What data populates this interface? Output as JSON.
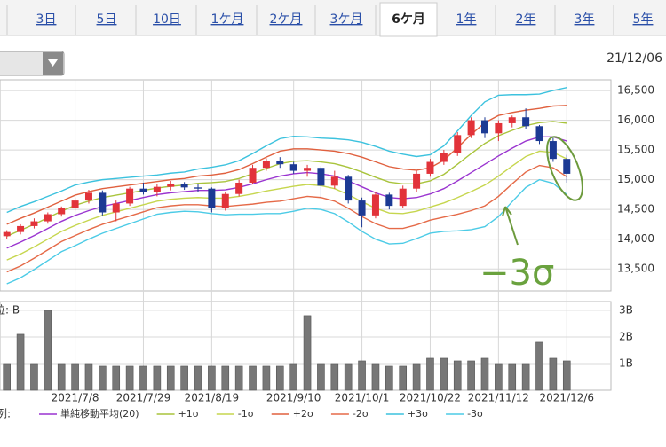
{
  "tabs": [
    {
      "label": "3日"
    },
    {
      "label": "5日"
    },
    {
      "label": "10日"
    },
    {
      "label": "1ケ月"
    },
    {
      "label": "2ケ月"
    },
    {
      "label": "3ケ月"
    },
    {
      "label": "6ケ月",
      "active": true
    },
    {
      "label": "1年"
    },
    {
      "label": "2年"
    },
    {
      "label": "3年"
    },
    {
      "label": "5年"
    }
  ],
  "date": "21/12/06",
  "annotation": "−3σ",
  "legend_prefix": "例:",
  "chart_data": [
    {
      "type": "candlestick",
      "categories": [
        null,
        null,
        null,
        null,
        null,
        "2021/7/8",
        null,
        null,
        null,
        null,
        "2021/7/29",
        null,
        null,
        null,
        null,
        "2021/8/19",
        null,
        null,
        null,
        null,
        null,
        "2021/9/10",
        null,
        null,
        null,
        null,
        "2021/10/1",
        null,
        null,
        null,
        null,
        "2021/10/22",
        null,
        null,
        null,
        null,
        "2021/11/12",
        null,
        null,
        null,
        null,
        "2021/12/6"
      ],
      "open": [
        14050,
        14120,
        14220,
        14300,
        14420,
        14520,
        14650,
        14780,
        14450,
        14600,
        14850,
        14800,
        14880,
        14920,
        14870,
        14850,
        14520,
        14760,
        14950,
        15200,
        15320,
        15260,
        15150,
        15200,
        14900,
        15050,
        14650,
        14400,
        14750,
        14560,
        14850,
        15100,
        15300,
        15450,
        15750,
        16000,
        15780,
        15950,
        16050,
        15900,
        15650,
        15350
      ],
      "high": [
        14150,
        14250,
        14350,
        14450,
        14550,
        14700,
        14830,
        14820,
        14650,
        14880,
        14950,
        14920,
        14980,
        14960,
        14920,
        14870,
        14800,
        15000,
        15250,
        15360,
        15380,
        15300,
        15250,
        15230,
        15150,
        15080,
        14700,
        14800,
        14780,
        14900,
        15150,
        15350,
        15500,
        15800,
        16050,
        16050,
        16000,
        16080,
        16200,
        15920,
        15700,
        15420
      ],
      "low": [
        14000,
        14080,
        14180,
        14260,
        14380,
        14480,
        14600,
        14400,
        14300,
        14560,
        14750,
        14720,
        14820,
        14830,
        14800,
        14450,
        14480,
        14720,
        14920,
        15150,
        15200,
        15100,
        15050,
        14700,
        14850,
        14600,
        14200,
        14350,
        14500,
        14520,
        14800,
        15050,
        15250,
        15400,
        15700,
        15700,
        15650,
        15880,
        15850,
        15600,
        15300,
        14950
      ],
      "close": [
        14120,
        14220,
        14300,
        14420,
        14520,
        14650,
        14780,
        14450,
        14600,
        14850,
        14800,
        14880,
        14920,
        14870,
        14850,
        14520,
        14760,
        14950,
        15200,
        15320,
        15260,
        15150,
        15200,
        14900,
        15050,
        14650,
        14400,
        14750,
        14560,
        14850,
        15100,
        15300,
        15450,
        15750,
        16000,
        15780,
        15950,
        16050,
        15900,
        15650,
        15350,
        15100
      ],
      "up_color": "#e2333a",
      "down_color": "#1c3a94",
      "overlays": [
        {
          "name": "単純移動平均(20)",
          "color": "#9a34d0",
          "values": [
            13850,
            13950,
            14060,
            14180,
            14300,
            14400,
            14480,
            14550,
            14600,
            14650,
            14700,
            14750,
            14780,
            14800,
            14820,
            14820,
            14830,
            14870,
            14930,
            15000,
            15060,
            15100,
            15120,
            15100,
            15060,
            14980,
            14880,
            14780,
            14700,
            14680,
            14700,
            14760,
            14850,
            14980,
            15120,
            15260,
            15400,
            15530,
            15650,
            15720,
            15720,
            15650
          ]
        },
        {
          "name": "+1σ",
          "color": "#a9c43c",
          "values": [
            14050,
            14150,
            14250,
            14360,
            14470,
            14570,
            14640,
            14700,
            14740,
            14780,
            14820,
            14860,
            14890,
            14910,
            14940,
            14950,
            14970,
            15020,
            15100,
            15190,
            15270,
            15310,
            15320,
            15300,
            15270,
            15210,
            15130,
            15040,
            14960,
            14930,
            14930,
            14980,
            15090,
            15260,
            15440,
            15610,
            15740,
            15830,
            15910,
            15960,
            15980,
            15950
          ]
        },
        {
          "name": "-1σ",
          "color": "#c6d64e",
          "values": [
            13650,
            13750,
            13870,
            14000,
            14130,
            14230,
            14320,
            14400,
            14460,
            14520,
            14580,
            14640,
            14670,
            14690,
            14700,
            14690,
            14690,
            14720,
            14760,
            14810,
            14850,
            14890,
            14920,
            14900,
            14850,
            14750,
            14630,
            14520,
            14440,
            14430,
            14470,
            14540,
            14610,
            14700,
            14800,
            14910,
            15060,
            15230,
            15390,
            15480,
            15460,
            15350
          ]
        },
        {
          "name": "+2σ",
          "color": "#e0603e",
          "values": [
            14250,
            14350,
            14440,
            14540,
            14640,
            14740,
            14800,
            14850,
            14880,
            14910,
            14940,
            14970,
            15000,
            15020,
            15060,
            15080,
            15110,
            15170,
            15270,
            15380,
            15480,
            15520,
            15520,
            15500,
            15480,
            15440,
            15380,
            15300,
            15220,
            15180,
            15160,
            15200,
            15330,
            15540,
            15760,
            15960,
            16080,
            16130,
            16170,
            16200,
            16240,
            16250
          ]
        },
        {
          "name": "-2σ",
          "color": "#e56a48",
          "values": [
            13450,
            13550,
            13680,
            13820,
            13960,
            14060,
            14160,
            14250,
            14320,
            14390,
            14460,
            14530,
            14560,
            14580,
            14580,
            14560,
            14550,
            14570,
            14590,
            14620,
            14640,
            14680,
            14720,
            14700,
            14640,
            14520,
            14380,
            14260,
            14180,
            14180,
            14240,
            14320,
            14370,
            14420,
            14480,
            14560,
            14720,
            14930,
            15130,
            15240,
            15200,
            15050
          ]
        },
        {
          "name": "+3σ",
          "color": "#3cc2de",
          "values": [
            14450,
            14550,
            14630,
            14720,
            14810,
            14910,
            14960,
            15000,
            15020,
            15040,
            15060,
            15080,
            15110,
            15130,
            15180,
            15210,
            15250,
            15320,
            15440,
            15570,
            15690,
            15730,
            15720,
            15700,
            15690,
            15670,
            15630,
            15560,
            15480,
            15430,
            15390,
            15420,
            15570,
            15820,
            16080,
            16310,
            16420,
            16430,
            16430,
            16440,
            16500,
            16550
          ]
        },
        {
          "name": "-3σ",
          "color": "#4ccbe6",
          "values": [
            13250,
            13350,
            13490,
            13640,
            13790,
            13890,
            14000,
            14100,
            14180,
            14260,
            14340,
            14420,
            14450,
            14470,
            14460,
            14430,
            14410,
            14420,
            14420,
            14430,
            14430,
            14470,
            14520,
            14500,
            14430,
            14290,
            14130,
            14000,
            13920,
            13930,
            14010,
            14100,
            14130,
            14140,
            14160,
            14210,
            14380,
            14630,
            14870,
            15000,
            14940,
            14750
          ]
        }
      ],
      "ylim": [
        13130,
        16680
      ],
      "yticks": [
        {
          "value": 13500,
          "label": "13,500"
        },
        {
          "value": 14000,
          "label": "14,000"
        },
        {
          "value": 14500,
          "label": "14,500"
        },
        {
          "value": 15000,
          "label": "15,000"
        },
        {
          "value": 15500,
          "label": "15,500"
        },
        {
          "value": 16000,
          "label": "16,000"
        },
        {
          "value": 16500,
          "label": "16,500"
        }
      ],
      "grid": true
    },
    {
      "type": "bar",
      "unit_label": "位: B",
      "color": "#777777",
      "values": [
        1.0,
        2.1,
        1.0,
        3.0,
        1.0,
        1.0,
        1.0,
        0.9,
        0.9,
        0.9,
        0.9,
        0.9,
        0.9,
        0.9,
        0.9,
        0.9,
        0.9,
        0.9,
        0.9,
        0.9,
        0.9,
        1.0,
        2.8,
        1.0,
        1.0,
        1.0,
        1.1,
        1.0,
        0.9,
        0.9,
        1.0,
        1.2,
        1.2,
        1.1,
        1.1,
        1.2,
        1.0,
        1.0,
        1.0,
        1.8,
        1.2,
        1.1
      ],
      "ylim": [
        0,
        3.33
      ],
      "yticks": [
        {
          "value": 1,
          "label": "1B"
        },
        {
          "value": 2,
          "label": "2B"
        },
        {
          "value": 3,
          "label": "3B"
        }
      ]
    }
  ]
}
